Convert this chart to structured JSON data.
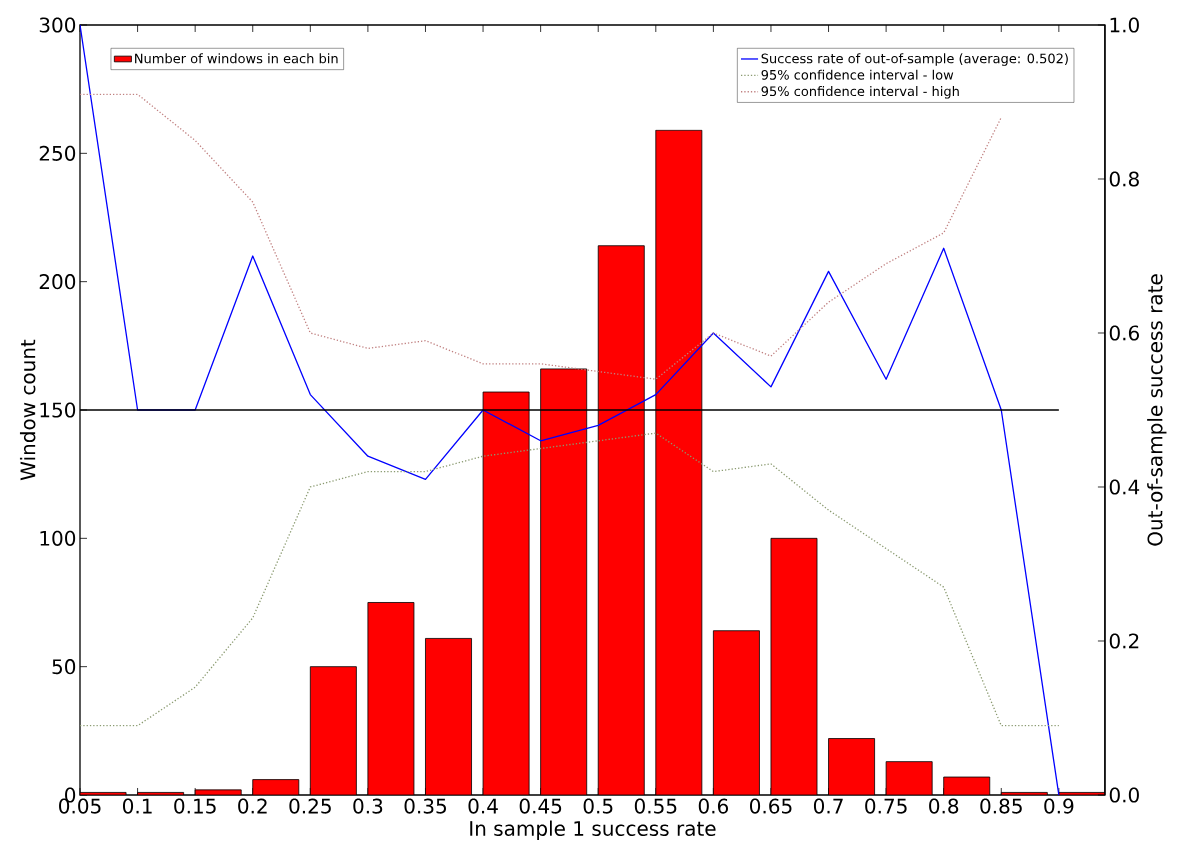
{
  "chart_data": {
    "type": "bar",
    "xlabel": "In sample 1 success rate",
    "ylabel": "Window count",
    "y2label": "Out-of-sample success rate",
    "x": [
      0.05,
      0.1,
      0.15,
      0.2,
      0.25,
      0.3,
      0.35,
      0.4,
      0.45,
      0.5,
      0.55,
      0.6,
      0.65,
      0.7,
      0.75,
      0.8,
      0.85,
      0.9
    ],
    "series": [
      {
        "name": "Number of windows in each bin",
        "color": "#ff0000",
        "x": [
          0.07,
          0.12,
          0.17,
          0.22,
          0.27,
          0.32,
          0.37,
          0.42,
          0.47,
          0.52,
          0.57,
          0.62,
          0.67,
          0.72,
          0.77,
          0.82,
          0.87,
          0.92
        ],
        "values": [
          1,
          1,
          2,
          6,
          50,
          75,
          61,
          157,
          166,
          214,
          259,
          64,
          100,
          22,
          13,
          7,
          1,
          1
        ]
      },
      {
        "name": "Success rate of out-of-sample (average: 0.502)",
        "type": "line",
        "axis": "y2",
        "color": "#0000ff",
        "line_style": "solid",
        "values": [
          1.0,
          0.5,
          0.5,
          0.7,
          0.52,
          0.44,
          0.41,
          0.5,
          0.46,
          0.48,
          0.52,
          0.6,
          0.53,
          0.68,
          0.54,
          0.71,
          0.5,
          0.0
        ]
      },
      {
        "name": "95% confidence interval - low",
        "type": "line",
        "axis": "y2",
        "color": "#8a9a70",
        "line_style": "dotted",
        "values": [
          0.09,
          0.09,
          0.14,
          0.23,
          0.4,
          0.42,
          0.42,
          0.44,
          0.45,
          0.46,
          0.47,
          0.42,
          0.43,
          0.37,
          0.32,
          0.27,
          0.09,
          0.09
        ]
      },
      {
        "name": "95% confidence interval - high",
        "type": "line",
        "axis": "y2",
        "color": "#c08080",
        "line_style": "dotted",
        "values": [
          0.91,
          0.91,
          0.85,
          0.77,
          0.6,
          0.58,
          0.59,
          0.56,
          0.56,
          0.55,
          0.54,
          0.6,
          0.57,
          0.64,
          0.69,
          0.73,
          0.88,
          null
        ]
      }
    ],
    "xlim": [
      0.05,
      0.94
    ],
    "xticks": [
      0.05,
      0.1,
      0.15,
      0.2,
      0.25,
      0.3,
      0.35,
      0.4,
      0.45,
      0.5,
      0.55,
      0.6,
      0.65,
      0.7,
      0.75,
      0.8,
      0.85,
      0.9
    ],
    "ylim": [
      0,
      300
    ],
    "yticks": [
      0,
      50,
      100,
      150,
      200,
      250,
      300
    ],
    "y2lim": [
      0,
      1
    ],
    "y2ticks": [
      {
        "value": 0,
        "label": "0.0"
      },
      0.2,
      0.4,
      0.6,
      0.8,
      {
        "value": 1,
        "label": "1.0"
      }
    ],
    "ref_lines": [
      {
        "axis": "y2",
        "value": 0.5,
        "color": "#000000"
      }
    ],
    "legend": "top",
    "marker": "none",
    "grid": false
  }
}
